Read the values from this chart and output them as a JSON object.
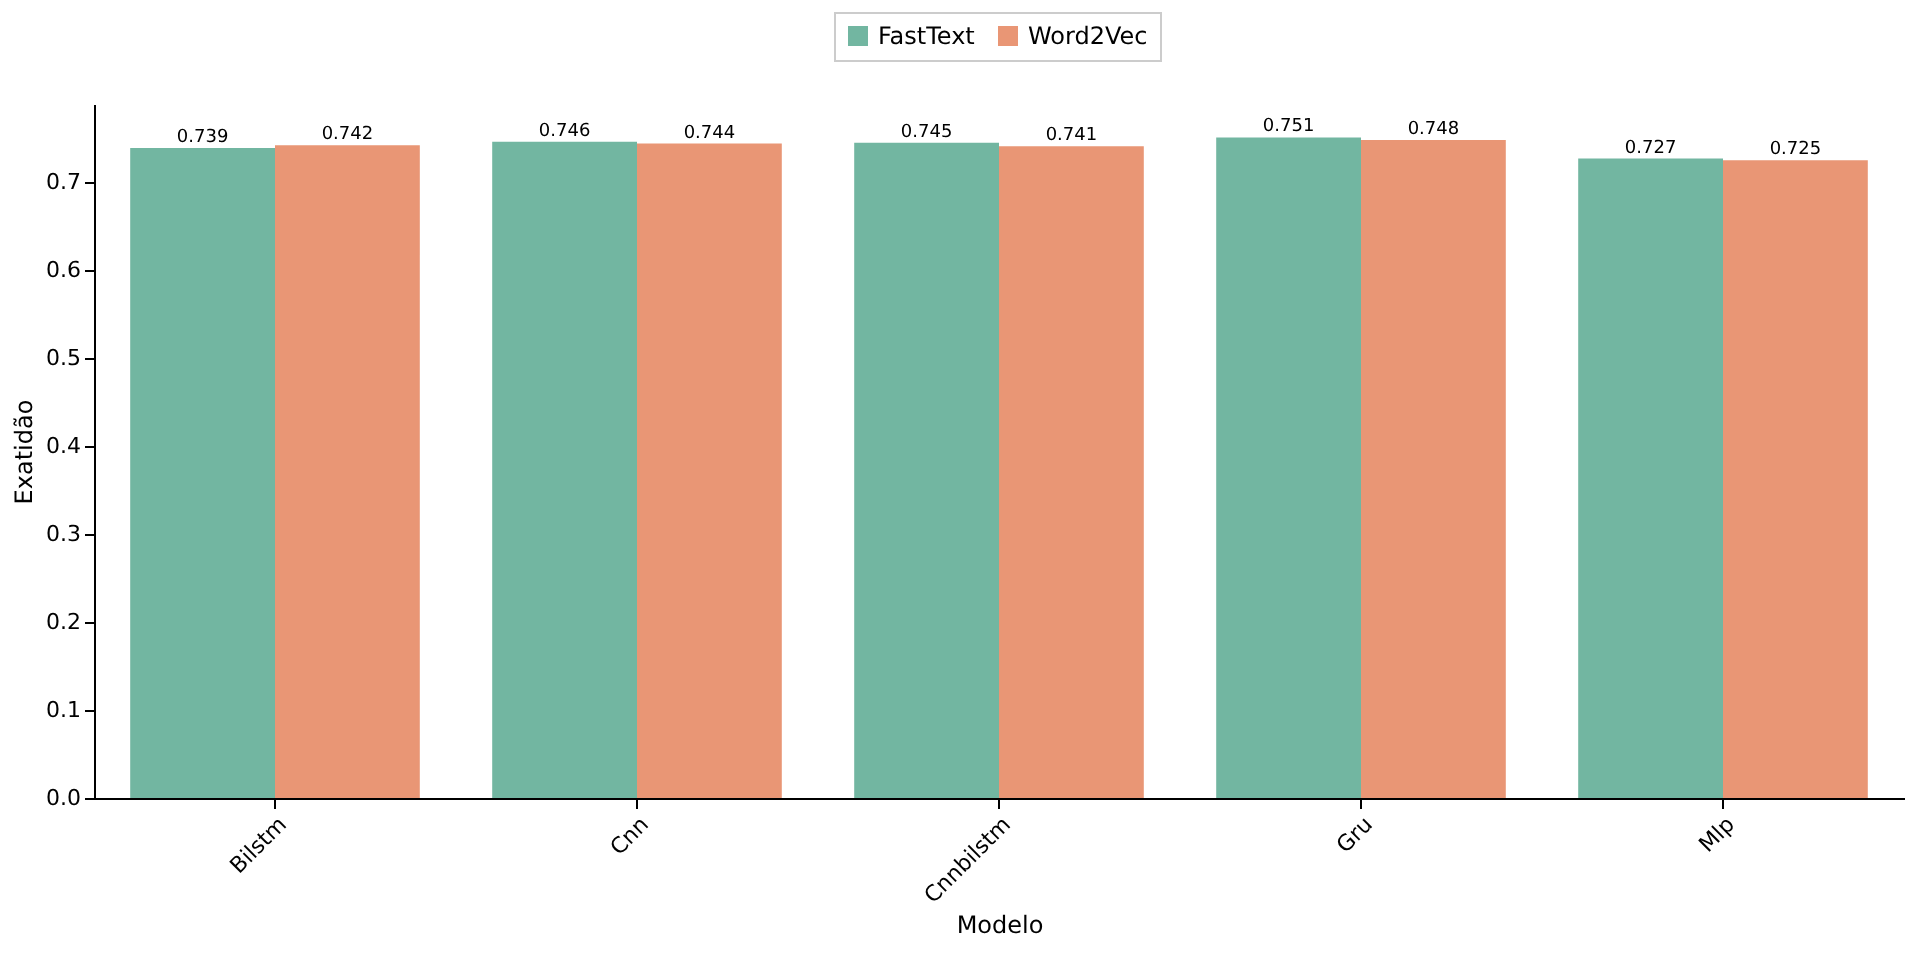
{
  "chart_data": {
    "type": "bar",
    "xlabel": "Modelo",
    "ylabel": "Exatidão",
    "categories": [
      "Bilstm",
      "Cnn",
      "Cnnbilstm",
      "Gru",
      "Mlp"
    ],
    "series": [
      {
        "name": "FastText",
        "color": "#72b6a1",
        "values": [
          0.739,
          0.746,
          0.745,
          0.751,
          0.727
        ]
      },
      {
        "name": "Word2Vec",
        "color": "#e99675",
        "values": [
          0.742,
          0.744,
          0.741,
          0.748,
          0.725
        ]
      }
    ],
    "ylim": [
      0,
      0.789
    ],
    "yticks": [
      {
        "value": 0,
        "label": "0.0"
      },
      {
        "value": 0.1,
        "label": "0.1"
      },
      {
        "value": 0.2,
        "label": "0.2"
      },
      {
        "value": 0.3,
        "label": "0.3"
      },
      {
        "value": 0.4,
        "label": "0.4"
      },
      {
        "value": 0.5,
        "label": "0.5"
      },
      {
        "value": 0.6,
        "label": "0.6"
      },
      {
        "value": 0.7,
        "label": "0.7"
      }
    ],
    "data_labels": true,
    "grid": false,
    "legend": "top"
  }
}
